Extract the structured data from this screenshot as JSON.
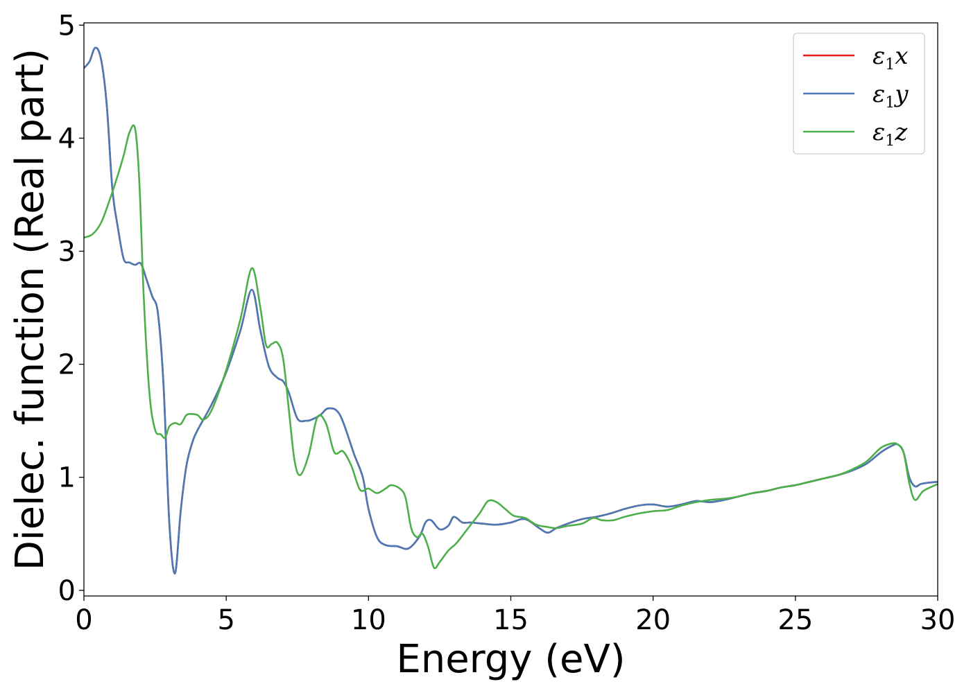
{
  "chart_data": {
    "type": "line",
    "title": "",
    "xlabel": "Energy (eV)",
    "ylabel": "Dielec. function (Real part)",
    "xlim": [
      0,
      30
    ],
    "ylim": [
      -0.05,
      5.02
    ],
    "xticks": [
      0,
      5,
      10,
      15,
      20,
      25,
      30
    ],
    "yticks": [
      0,
      1,
      2,
      3,
      4,
      5
    ],
    "grid": false,
    "legend_position": "top-right",
    "series": [
      {
        "name": "ε1x",
        "legend_base": "ε",
        "legend_sub": "1",
        "legend_suffix": "x",
        "color": "#e41a1c",
        "x": [
          0,
          0.2,
          0.4,
          0.6,
          0.8,
          1.0,
          1.2,
          1.4,
          1.6,
          1.8,
          2.0,
          2.2,
          2.4,
          2.6,
          2.8,
          3.0,
          3.2,
          3.4,
          3.6,
          3.8,
          4.0,
          4.5,
          5.0,
          5.5,
          5.9,
          6.2,
          6.5,
          6.8,
          7.0,
          7.2,
          7.5,
          7.8,
          8.0,
          8.3,
          8.6,
          9.0,
          9.5,
          9.8,
          10.0,
          10.3,
          10.6,
          11.0,
          11.4,
          11.8,
          12.0,
          12.2,
          12.5,
          12.8,
          13.0,
          13.3,
          13.6,
          14.0,
          14.5,
          15.0,
          15.5,
          16.0,
          16.3,
          16.6,
          17.0,
          17.5,
          18.0,
          18.5,
          19.0,
          19.5,
          20.0,
          20.5,
          21.0,
          21.5,
          22.0,
          22.5,
          23.0,
          23.5,
          24.0,
          24.5,
          25.0,
          25.5,
          26.0,
          26.5,
          27.0,
          27.5,
          28.0,
          28.4,
          28.6,
          28.8,
          29.0,
          29.2,
          29.4,
          29.6,
          30.0
        ],
        "y": [
          4.62,
          4.68,
          4.8,
          4.7,
          4.3,
          3.55,
          3.2,
          2.93,
          2.9,
          2.88,
          2.89,
          2.75,
          2.6,
          2.45,
          1.8,
          0.6,
          0.15,
          0.7,
          1.1,
          1.3,
          1.42,
          1.65,
          1.93,
          2.3,
          2.66,
          2.3,
          1.98,
          1.88,
          1.85,
          1.75,
          1.52,
          1.5,
          1.51,
          1.55,
          1.61,
          1.55,
          1.2,
          1.0,
          0.72,
          0.47,
          0.4,
          0.39,
          0.37,
          0.48,
          0.6,
          0.62,
          0.54,
          0.57,
          0.65,
          0.6,
          0.6,
          0.59,
          0.58,
          0.6,
          0.63,
          0.55,
          0.51,
          0.55,
          0.59,
          0.63,
          0.65,
          0.68,
          0.72,
          0.75,
          0.76,
          0.74,
          0.76,
          0.79,
          0.78,
          0.8,
          0.83,
          0.86,
          0.88,
          0.91,
          0.93,
          0.96,
          0.99,
          1.02,
          1.06,
          1.12,
          1.22,
          1.28,
          1.29,
          1.22,
          1.0,
          0.92,
          0.94,
          0.95,
          0.96
        ]
      },
      {
        "name": "ε1y",
        "legend_base": "ε",
        "legend_sub": "1",
        "legend_suffix": "y",
        "color": "#4a7ab5",
        "x": [
          0,
          0.2,
          0.4,
          0.6,
          0.8,
          1.0,
          1.2,
          1.4,
          1.6,
          1.8,
          2.0,
          2.2,
          2.4,
          2.6,
          2.8,
          3.0,
          3.2,
          3.4,
          3.6,
          3.8,
          4.0,
          4.5,
          5.0,
          5.5,
          5.9,
          6.2,
          6.5,
          6.8,
          7.0,
          7.2,
          7.5,
          7.8,
          8.0,
          8.3,
          8.6,
          9.0,
          9.5,
          9.8,
          10.0,
          10.3,
          10.6,
          11.0,
          11.4,
          11.8,
          12.0,
          12.2,
          12.5,
          12.8,
          13.0,
          13.3,
          13.6,
          14.0,
          14.5,
          15.0,
          15.5,
          16.0,
          16.3,
          16.6,
          17.0,
          17.5,
          18.0,
          18.5,
          19.0,
          19.5,
          20.0,
          20.5,
          21.0,
          21.5,
          22.0,
          22.5,
          23.0,
          23.5,
          24.0,
          24.5,
          25.0,
          25.5,
          26.0,
          26.5,
          27.0,
          27.5,
          28.0,
          28.4,
          28.6,
          28.8,
          29.0,
          29.2,
          29.4,
          29.6,
          30.0
        ],
        "y": [
          4.62,
          4.68,
          4.8,
          4.7,
          4.3,
          3.55,
          3.2,
          2.93,
          2.9,
          2.88,
          2.89,
          2.75,
          2.6,
          2.45,
          1.8,
          0.6,
          0.15,
          0.7,
          1.1,
          1.3,
          1.42,
          1.65,
          1.93,
          2.3,
          2.66,
          2.3,
          1.98,
          1.88,
          1.85,
          1.75,
          1.52,
          1.5,
          1.51,
          1.55,
          1.61,
          1.55,
          1.2,
          1.0,
          0.72,
          0.47,
          0.4,
          0.39,
          0.37,
          0.48,
          0.6,
          0.62,
          0.54,
          0.57,
          0.65,
          0.6,
          0.6,
          0.59,
          0.58,
          0.6,
          0.63,
          0.55,
          0.51,
          0.55,
          0.59,
          0.63,
          0.65,
          0.68,
          0.72,
          0.75,
          0.76,
          0.74,
          0.76,
          0.79,
          0.78,
          0.8,
          0.83,
          0.86,
          0.88,
          0.91,
          0.93,
          0.96,
          0.99,
          1.02,
          1.06,
          1.12,
          1.22,
          1.28,
          1.29,
          1.22,
          1.0,
          0.92,
          0.94,
          0.95,
          0.96
        ]
      },
      {
        "name": "ε1z",
        "legend_base": "ε",
        "legend_sub": "1",
        "legend_suffix": "z",
        "color": "#4daf4a",
        "x": [
          0,
          0.3,
          0.6,
          0.9,
          1.2,
          1.4,
          1.6,
          1.8,
          1.95,
          2.1,
          2.3,
          2.5,
          2.7,
          2.85,
          3.0,
          3.2,
          3.4,
          3.6,
          3.8,
          4.0,
          4.2,
          4.5,
          5.0,
          5.5,
          5.9,
          6.2,
          6.4,
          6.6,
          6.8,
          7.0,
          7.2,
          7.4,
          7.6,
          7.9,
          8.2,
          8.5,
          8.8,
          9.1,
          9.4,
          9.7,
          10.0,
          10.3,
          10.6,
          10.8,
          11.1,
          11.3,
          11.5,
          11.7,
          11.9,
          12.1,
          12.3,
          12.5,
          12.8,
          13.1,
          13.5,
          13.9,
          14.2,
          14.5,
          14.8,
          15.1,
          15.5,
          15.9,
          16.3,
          16.6,
          17.0,
          17.5,
          17.9,
          18.2,
          18.6,
          19.0,
          19.5,
          20.0,
          20.5,
          21.0,
          21.5,
          22.0,
          22.5,
          23.0,
          23.5,
          24.0,
          24.5,
          25.0,
          25.5,
          26.0,
          26.5,
          27.0,
          27.5,
          28.0,
          28.4,
          28.6,
          28.8,
          29.0,
          29.2,
          29.5,
          30.0
        ],
        "y": [
          3.12,
          3.15,
          3.25,
          3.45,
          3.68,
          3.85,
          4.05,
          4.08,
          3.6,
          2.6,
          1.75,
          1.42,
          1.38,
          1.35,
          1.45,
          1.48,
          1.47,
          1.55,
          1.56,
          1.55,
          1.51,
          1.6,
          1.95,
          2.4,
          2.85,
          2.5,
          2.17,
          2.18,
          2.19,
          2.05,
          1.6,
          1.15,
          1.02,
          1.2,
          1.53,
          1.48,
          1.22,
          1.23,
          1.1,
          0.89,
          0.9,
          0.86,
          0.9,
          0.93,
          0.9,
          0.82,
          0.55,
          0.47,
          0.5,
          0.38,
          0.2,
          0.25,
          0.35,
          0.42,
          0.55,
          0.68,
          0.79,
          0.78,
          0.72,
          0.66,
          0.64,
          0.58,
          0.56,
          0.55,
          0.57,
          0.59,
          0.64,
          0.62,
          0.62,
          0.65,
          0.68,
          0.7,
          0.71,
          0.75,
          0.78,
          0.8,
          0.81,
          0.83,
          0.86,
          0.88,
          0.91,
          0.93,
          0.96,
          0.99,
          1.02,
          1.07,
          1.14,
          1.26,
          1.3,
          1.29,
          1.22,
          0.95,
          0.8,
          0.88,
          0.94
        ]
      }
    ]
  }
}
